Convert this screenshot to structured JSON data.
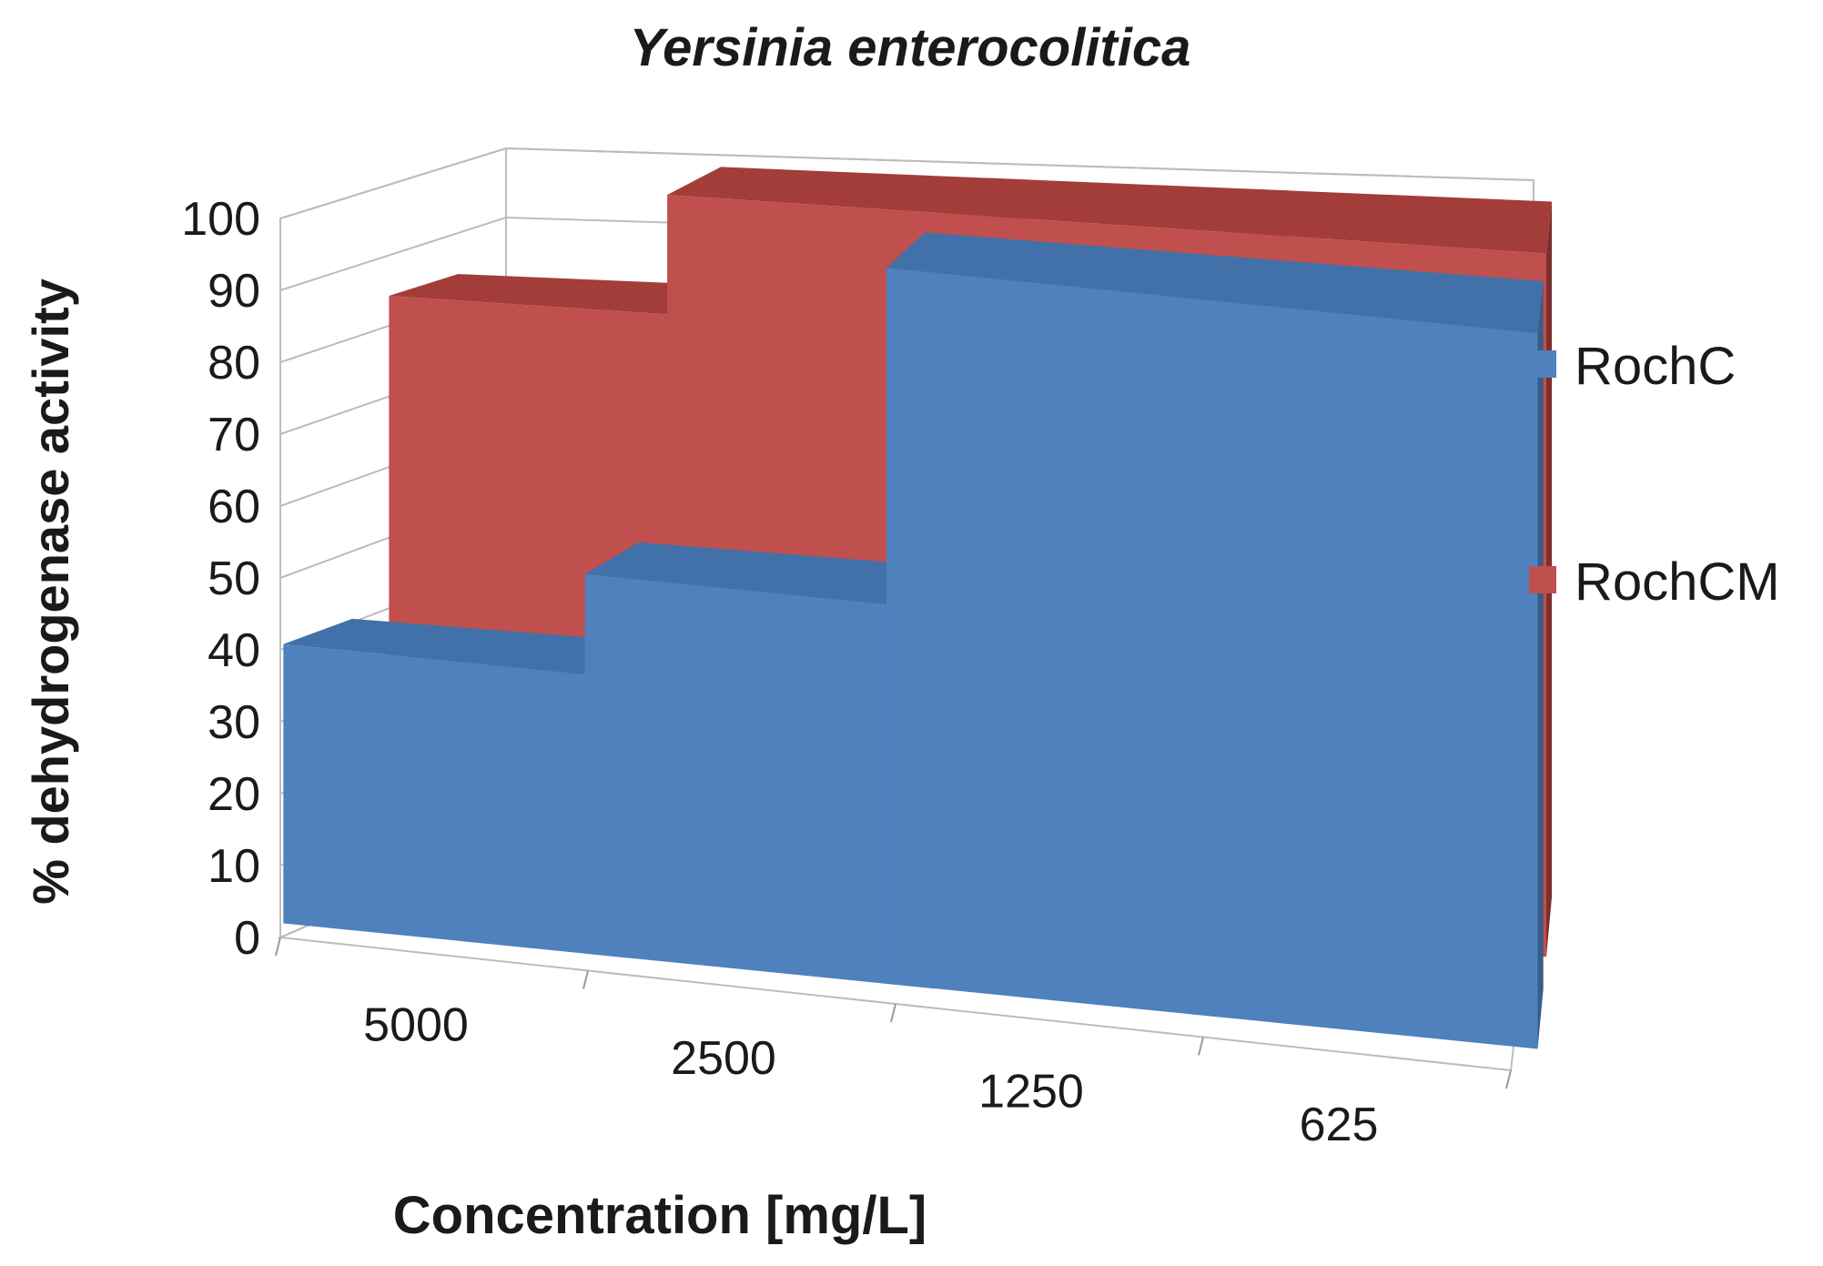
{
  "chart_data": {
    "type": "bar",
    "style": "3d-clustered-depth",
    "title": "Yersinia enterocolitica",
    "xlabel": "Concentration [mg/L]",
    "ylabel": "% dehydrogenase activity",
    "categories": [
      "5000",
      "2500",
      "1250",
      "625"
    ],
    "y_ticks": [
      "0",
      "10",
      "20",
      "30",
      "40",
      "50",
      "60",
      "70",
      "80",
      "90",
      "100"
    ],
    "ylim": [
      0,
      100
    ],
    "grid": true,
    "legend_position": "right",
    "series": [
      {
        "name": "RochC",
        "color": "#4f81bd",
        "side_color": "#385d8a",
        "top_color": "#4171a8",
        "values": [
          39,
          53,
          100,
          100
        ]
      },
      {
        "name": "RochCM",
        "color": "#c0504d",
        "side_color": "#7b2f2e",
        "top_color": "#a33d3a",
        "values": [
          83,
          100,
          100,
          100
        ]
      }
    ]
  }
}
